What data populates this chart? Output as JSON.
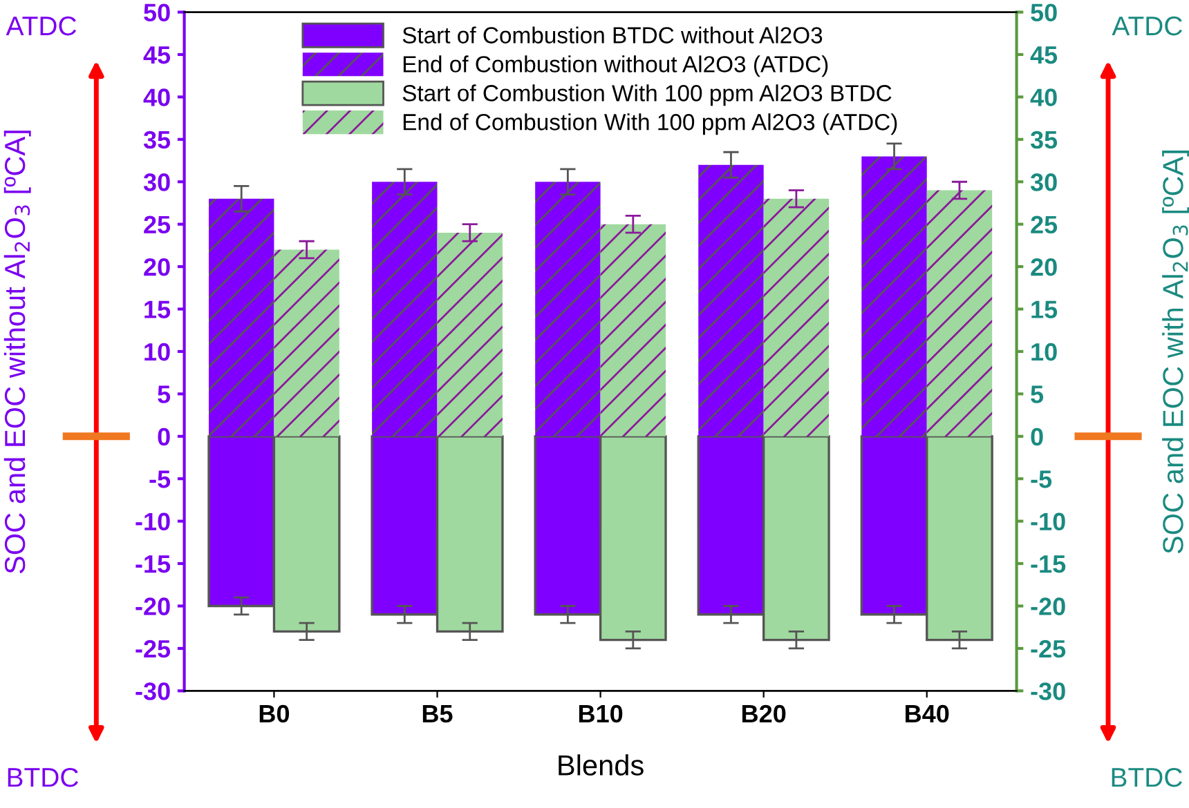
{
  "chart_data": {
    "type": "bar",
    "stacked": true,
    "xlabel": "Blends",
    "ylabel": "SOC and EOC without Al$_{2}$O$_{3}$ [ºCA]",
    "y2label": "SOC and EOC with Al$_{2}$O$_{3}$ [ºCA]",
    "categories": [
      "B0",
      "B5",
      "B10",
      "B20",
      "B40"
    ],
    "series": [
      {
        "name": "Start of Combustion BTDC without Al2O3",
        "color": "#8000ff",
        "values": [
          -20,
          -21,
          -21,
          -21,
          -21
        ],
        "errors": [
          1,
          1,
          1,
          1,
          1
        ]
      },
      {
        "name": "End of Combustion without Al2O3 (ATDC)",
        "color": "#8000ff",
        "values": [
          28,
          30,
          30,
          32,
          33
        ],
        "errors": [
          1.5,
          1.5,
          1.5,
          1.5,
          1.5
        ]
      },
      {
        "name": "Start of Combustion With 100 ppm Al2O3 BTDC",
        "color": "#9fd99f",
        "axis": "y2",
        "values": [
          -23,
          -23,
          -24,
          -24,
          -24
        ],
        "errors": [
          1,
          1,
          1,
          1,
          1
        ]
      },
      {
        "name": "End of Combustion With 100 ppm Al2O3 (ATDC)",
        "color": "#9fd99f",
        "axis": "y2",
        "values": [
          22,
          24,
          25,
          28,
          29
        ],
        "errors": [
          1,
          1,
          1,
          1,
          1
        ]
      }
    ],
    "ylim": [
      -30,
      50
    ],
    "yticks": [
      -30,
      -25,
      -20,
      -15,
      -10,
      -5,
      0,
      5,
      10,
      15,
      20,
      25,
      30,
      35,
      40,
      45,
      50
    ],
    "y2lim": [
      -30,
      50
    ],
    "y2ticks": [
      -30,
      -25,
      -20,
      -15,
      -10,
      -5,
      0,
      5,
      10,
      15,
      20,
      25,
      30,
      35,
      40,
      45,
      50
    ],
    "annotations": [
      "ATDC",
      "BTDC",
      "ATDC",
      "BTDC"
    ],
    "legend": "top",
    "grid": false
  }
}
